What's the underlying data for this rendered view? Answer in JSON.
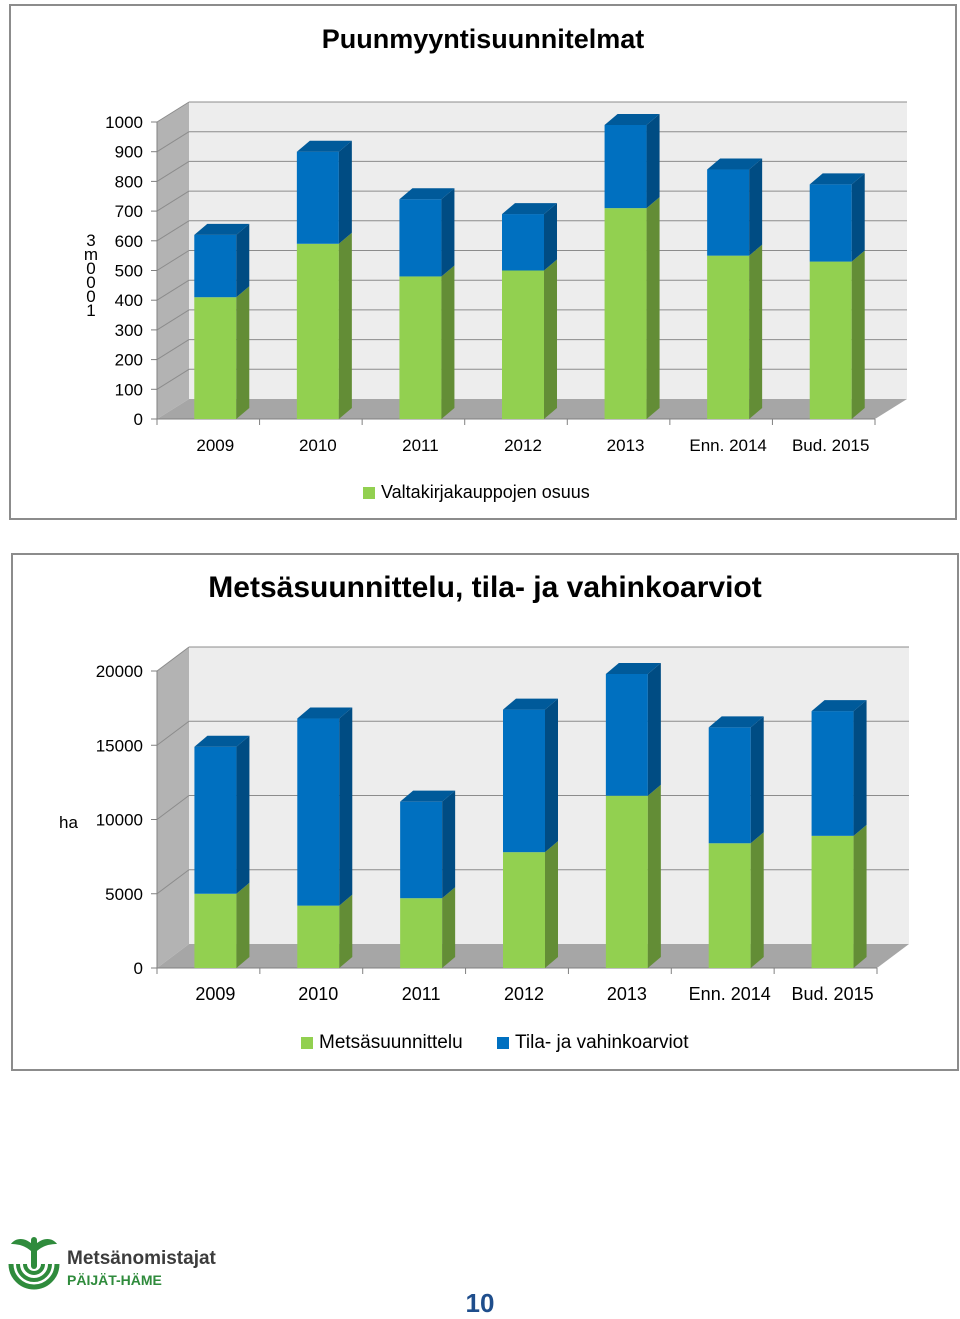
{
  "chart_data": [
    {
      "type": "bar",
      "stacked": true,
      "three_d": true,
      "title": "Puunmyyntisuunnitelmat",
      "ylabel": "1000 m3",
      "ylabel_chars": [
        "3",
        "m",
        "0",
        "0",
        "0",
        "1"
      ],
      "categories": [
        "2009",
        "2010",
        "2011",
        "2012",
        "2013",
        "Enn. 2014",
        "Bud. 2015"
      ],
      "yticks": [
        "0",
        "100",
        "200",
        "300",
        "400",
        "500",
        "600",
        "700",
        "800",
        "900",
        "1000"
      ],
      "ylim": [
        0,
        1000
      ],
      "series": [
        {
          "name": "Valtakirjakauppojen osuus",
          "color": "#92d050",
          "values": [
            410,
            590,
            480,
            500,
            710,
            550,
            530
          ]
        },
        {
          "color": "#0070c0",
          "values": [
            210,
            310,
            260,
            190,
            280,
            290,
            260
          ]
        }
      ],
      "legend": "bottom"
    },
    {
      "type": "bar",
      "stacked": true,
      "three_d": true,
      "title": "Metsäsuunnittelu, tila- ja vahinkoarviot",
      "ylabel": "ha",
      "categories": [
        "2009",
        "2010",
        "2011",
        "2012",
        "2013",
        "Enn. 2014",
        "Bud. 2015"
      ],
      "yticks": [
        "0",
        "5000",
        "10000",
        "15000",
        "20000"
      ],
      "ylim": [
        0,
        20000
      ],
      "series": [
        {
          "name": "Metsäsuunnittelu",
          "color": "#92d050",
          "values": [
            5000,
            4200,
            4700,
            7800,
            11600,
            8400,
            8900
          ]
        },
        {
          "name": "Tila- ja vahinkoarviot",
          "color": "#0070c0",
          "values": [
            9900,
            12600,
            6500,
            9600,
            8200,
            7800,
            8400
          ]
        }
      ],
      "legend": "bottom"
    }
  ],
  "footer": {
    "logo_name": "Metsänomistajat",
    "logo_sub": "PÄIJÄT-HÄME",
    "page_number": "10"
  }
}
